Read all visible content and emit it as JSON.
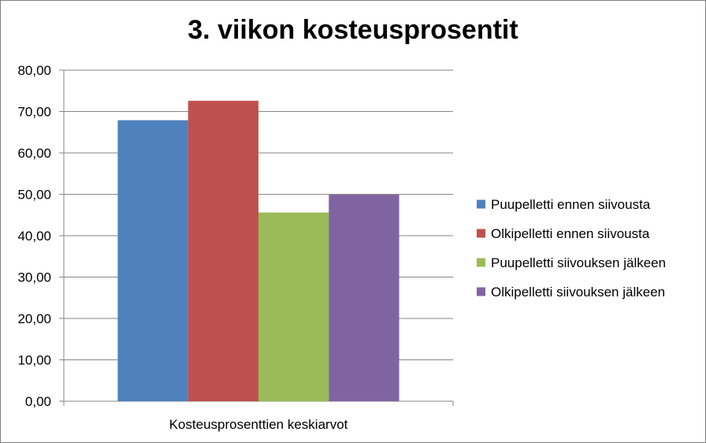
{
  "chart_data": {
    "type": "bar",
    "title": "3. viikon kosteusprosentit",
    "categories": [
      "Kosteusprosenttien keskiarvot"
    ],
    "series": [
      {
        "name": "Puupelletti ennen siivousta",
        "values": [
          67.9
        ],
        "color": "#4f81bd"
      },
      {
        "name": "Olkipelletti ennen siivousta",
        "values": [
          72.6
        ],
        "color": "#c0504d"
      },
      {
        "name": "Puupelletti siivouksen jälkeen",
        "values": [
          45.6
        ],
        "color": "#9bbb59"
      },
      {
        "name": "Olkipelletti siivouksen jälkeen",
        "values": [
          49.9
        ],
        "color": "#8064a2"
      }
    ],
    "ylim": [
      0,
      80
    ],
    "yticks": [
      "0,00",
      "10,00",
      "20,00",
      "30,00",
      "40,00",
      "50,00",
      "60,00",
      "70,00",
      "80,00"
    ],
    "grid": true,
    "legend_position": "right"
  }
}
